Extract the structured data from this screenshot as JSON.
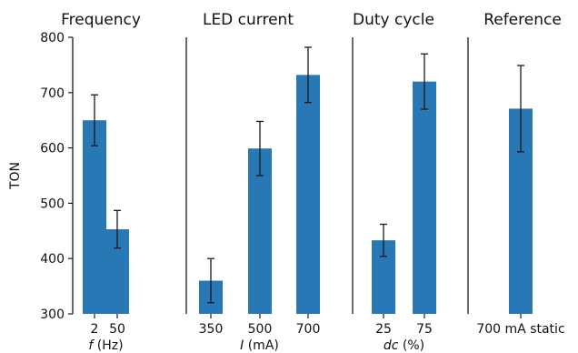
{
  "chart_data": [
    {
      "type": "bar",
      "title": "Frequency",
      "xlabel_italic": "f",
      "xlabel_unit": " (Hz)",
      "ylabel": "TON",
      "ylim": [
        300,
        800
      ],
      "yticks": [
        "300",
        "400",
        "500",
        "600",
        "700",
        "800"
      ],
      "categories": [
        "2",
        "50"
      ],
      "values": [
        650,
        453
      ],
      "errors": [
        46,
        34
      ],
      "color": "#2878b5"
    },
    {
      "type": "bar",
      "title": "LED current",
      "xlabel_italic": "I",
      "xlabel_unit": " (mA)",
      "ylim": [
        300,
        800
      ],
      "categories": [
        "350",
        "500",
        "700"
      ],
      "values": [
        360,
        599,
        732
      ],
      "errors": [
        40,
        49,
        50
      ],
      "color": "#2878b5"
    },
    {
      "type": "bar",
      "title": "Duty cycle",
      "xlabel_italic": "dc",
      "xlabel_unit": " (%)",
      "ylim": [
        300,
        800
      ],
      "categories": [
        "25",
        "75"
      ],
      "values": [
        433,
        720
      ],
      "errors": [
        29,
        50
      ],
      "color": "#2878b5"
    },
    {
      "type": "bar",
      "title": "Reference",
      "xlabel_italic": "",
      "xlabel_unit": "",
      "ylim": [
        300,
        800
      ],
      "categories": [
        "700 mA static"
      ],
      "values": [
        671
      ],
      "errors": [
        78
      ],
      "color": "#2878b5"
    }
  ]
}
